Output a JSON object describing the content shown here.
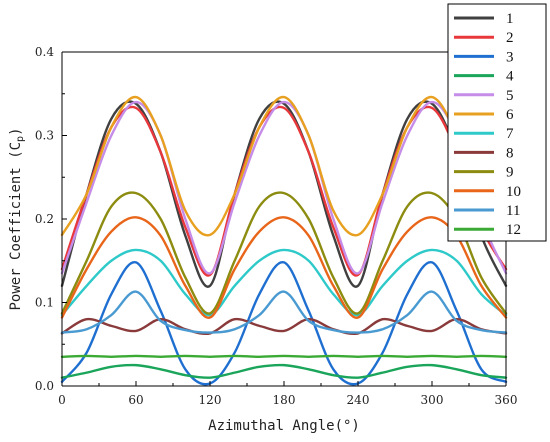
{
  "chart_data": {
    "type": "line",
    "xlabel": "Azimuthal Angle(°)",
    "ylabel": "Power Coefficient (C",
    "ylabel_sub": "p",
    "ylabel_close": ")",
    "xlim": [
      0,
      360
    ],
    "ylim": [
      0,
      0.4
    ],
    "xticks": [
      "0",
      "60",
      "120",
      "180",
      "240",
      "300",
      "360"
    ],
    "yticks": [
      "0.0",
      "0.1",
      "0.2",
      "0.3",
      "0.4"
    ],
    "grid": false,
    "legend_position": "right",
    "x": [
      0,
      20,
      40,
      60,
      80,
      100,
      120,
      140,
      160,
      180,
      200,
      220,
      240,
      260,
      280,
      300,
      320,
      340,
      360
    ],
    "series": [
      {
        "name": "1",
        "color": "#404040",
        "values": [
          0.12,
          0.23,
          0.32,
          0.338,
          0.28,
          0.18,
          0.12,
          0.23,
          0.32,
          0.338,
          0.28,
          0.18,
          0.12,
          0.23,
          0.32,
          0.338,
          0.28,
          0.18,
          0.12
        ]
      },
      {
        "name": "2",
        "color": "#e8383c",
        "values": [
          0.14,
          0.23,
          0.31,
          0.333,
          0.28,
          0.19,
          0.133,
          0.23,
          0.31,
          0.333,
          0.28,
          0.19,
          0.133,
          0.23,
          0.31,
          0.333,
          0.28,
          0.19,
          0.14
        ]
      },
      {
        "name": "3",
        "color": "#1f6fd1",
        "values": [
          0.005,
          0.04,
          0.11,
          0.148,
          0.09,
          0.02,
          0.003,
          0.04,
          0.11,
          0.148,
          0.09,
          0.02,
          0.003,
          0.04,
          0.11,
          0.148,
          0.09,
          0.02,
          0.005
        ]
      },
      {
        "name": "4",
        "color": "#1aa55a",
        "values": [
          0.01,
          0.016,
          0.023,
          0.025,
          0.02,
          0.013,
          0.01,
          0.016,
          0.023,
          0.025,
          0.02,
          0.013,
          0.01,
          0.016,
          0.023,
          0.025,
          0.02,
          0.013,
          0.01
        ]
      },
      {
        "name": "5",
        "color": "#c58ce8",
        "values": [
          0.135,
          0.22,
          0.3,
          0.34,
          0.3,
          0.2,
          0.135,
          0.22,
          0.3,
          0.34,
          0.3,
          0.2,
          0.135,
          0.22,
          0.3,
          0.34,
          0.3,
          0.2,
          0.135
        ]
      },
      {
        "name": "6",
        "color": "#e8a020",
        "values": [
          0.181,
          0.23,
          0.31,
          0.346,
          0.3,
          0.21,
          0.181,
          0.23,
          0.31,
          0.346,
          0.3,
          0.21,
          0.181,
          0.23,
          0.31,
          0.346,
          0.3,
          0.21,
          0.181
        ]
      },
      {
        "name": "7",
        "color": "#2ec9c9",
        "values": [
          0.085,
          0.12,
          0.15,
          0.163,
          0.15,
          0.11,
          0.085,
          0.12,
          0.15,
          0.163,
          0.15,
          0.11,
          0.085,
          0.12,
          0.15,
          0.163,
          0.15,
          0.11,
          0.085
        ]
      },
      {
        "name": "8",
        "color": "#8a3a3a",
        "values": [
          0.063,
          0.08,
          0.072,
          0.066,
          0.08,
          0.068,
          0.063,
          0.08,
          0.072,
          0.066,
          0.08,
          0.068,
          0.063,
          0.08,
          0.072,
          0.066,
          0.08,
          0.068,
          0.063
        ]
      },
      {
        "name": "9",
        "color": "#8c8c10",
        "values": [
          0.087,
          0.15,
          0.215,
          0.231,
          0.2,
          0.13,
          0.087,
          0.15,
          0.215,
          0.231,
          0.2,
          0.13,
          0.087,
          0.15,
          0.215,
          0.231,
          0.2,
          0.13,
          0.087
        ]
      },
      {
        "name": "10",
        "color": "#e8651a",
        "values": [
          0.082,
          0.14,
          0.185,
          0.202,
          0.18,
          0.12,
          0.082,
          0.14,
          0.185,
          0.202,
          0.18,
          0.12,
          0.082,
          0.14,
          0.185,
          0.202,
          0.18,
          0.12,
          0.082
        ]
      },
      {
        "name": "11",
        "color": "#4a9ad2",
        "values": [
          0.064,
          0.068,
          0.085,
          0.113,
          0.078,
          0.067,
          0.064,
          0.068,
          0.085,
          0.113,
          0.078,
          0.067,
          0.064,
          0.068,
          0.085,
          0.113,
          0.078,
          0.067,
          0.064
        ]
      },
      {
        "name": "12",
        "color": "#3aaa35",
        "values": [
          0.035,
          0.036,
          0.035,
          0.036,
          0.035,
          0.036,
          0.035,
          0.036,
          0.035,
          0.036,
          0.035,
          0.036,
          0.035,
          0.036,
          0.035,
          0.036,
          0.035,
          0.036,
          0.035
        ]
      }
    ]
  }
}
